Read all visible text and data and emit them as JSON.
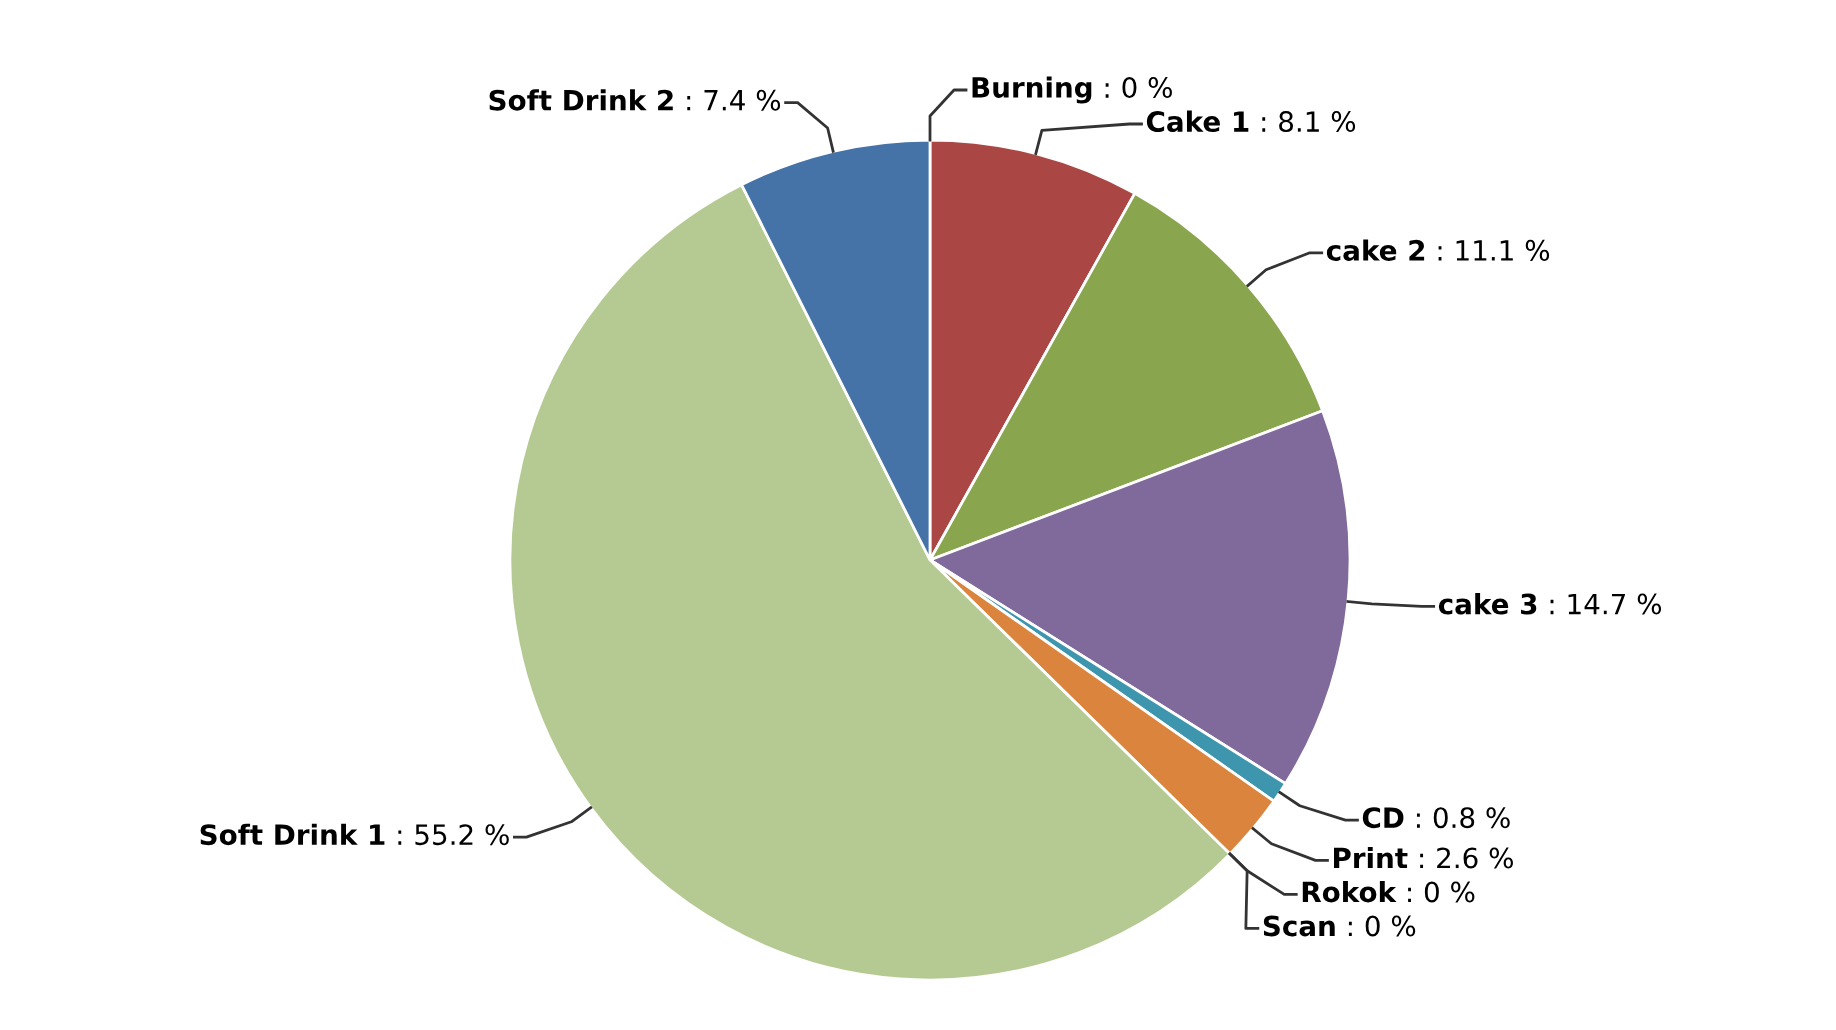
{
  "chart_data": {
    "type": "pie",
    "categories": [
      "Burning",
      "Cake 1",
      "cake 2",
      "cake 3",
      "CD",
      "Print",
      "Rokok",
      "Scan",
      "Soft Drink 1",
      "Soft Drink 2"
    ],
    "values": [
      0,
      8.1,
      11.1,
      14.7,
      0.8,
      2.6,
      0,
      0,
      55.2,
      7.4
    ],
    "colors": [
      "#4572a7",
      "#aa4643",
      "#89a54e",
      "#80699b",
      "#3d96ae",
      "#db843d",
      "#92a8cd",
      "#a47d7c",
      "#b5ca92",
      "#4572a7"
    ],
    "value_labels": [
      ": 0 %",
      ": 8.1 %",
      ": 11.1 %",
      ": 14.7 %",
      ": 0.8 %",
      ": 2.6 %",
      ": 0 %",
      ": 0 %",
      ": 55.2 %",
      ": 7.4 %"
    ]
  }
}
